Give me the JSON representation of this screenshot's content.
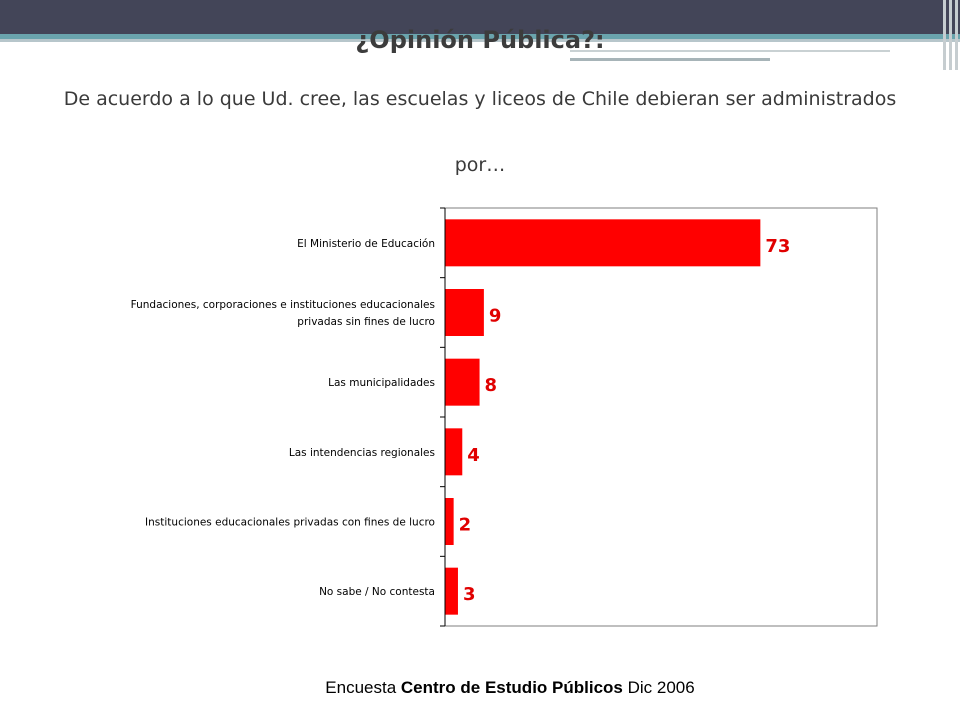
{
  "slide": {
    "title": "¿Opinión Pública?:",
    "subtitle": "De acuerdo a lo que Ud. cree, las escuelas y liceos de Chile debieran ser administrados por…",
    "source_prefix": "Encuesta ",
    "source_bold": "Centro de Estudio Públicos",
    "source_suffix": " Dic 2006"
  },
  "colors": {
    "bar": "#ff0000",
    "value_label": "#e00000",
    "header": "#434558",
    "accent": "#6aa4ad"
  },
  "chart_data": {
    "type": "bar",
    "orientation": "horizontal",
    "categories": [
      [
        "El Ministerio de Educación"
      ],
      [
        "Fundaciones, corporaciones e instituciones educacionales",
        "privadas sin fines de lucro"
      ],
      [
        "Las municipalidades"
      ],
      [
        "Las intendencias regionales"
      ],
      [
        "Instituciones educacionales privadas con fines de lucro"
      ],
      [
        "No sabe / No contesta"
      ]
    ],
    "values": [
      73,
      9,
      8,
      4,
      2,
      3
    ],
    "xlim": [
      0,
      100
    ],
    "grid": false,
    "title": "",
    "xlabel": "",
    "ylabel": ""
  }
}
